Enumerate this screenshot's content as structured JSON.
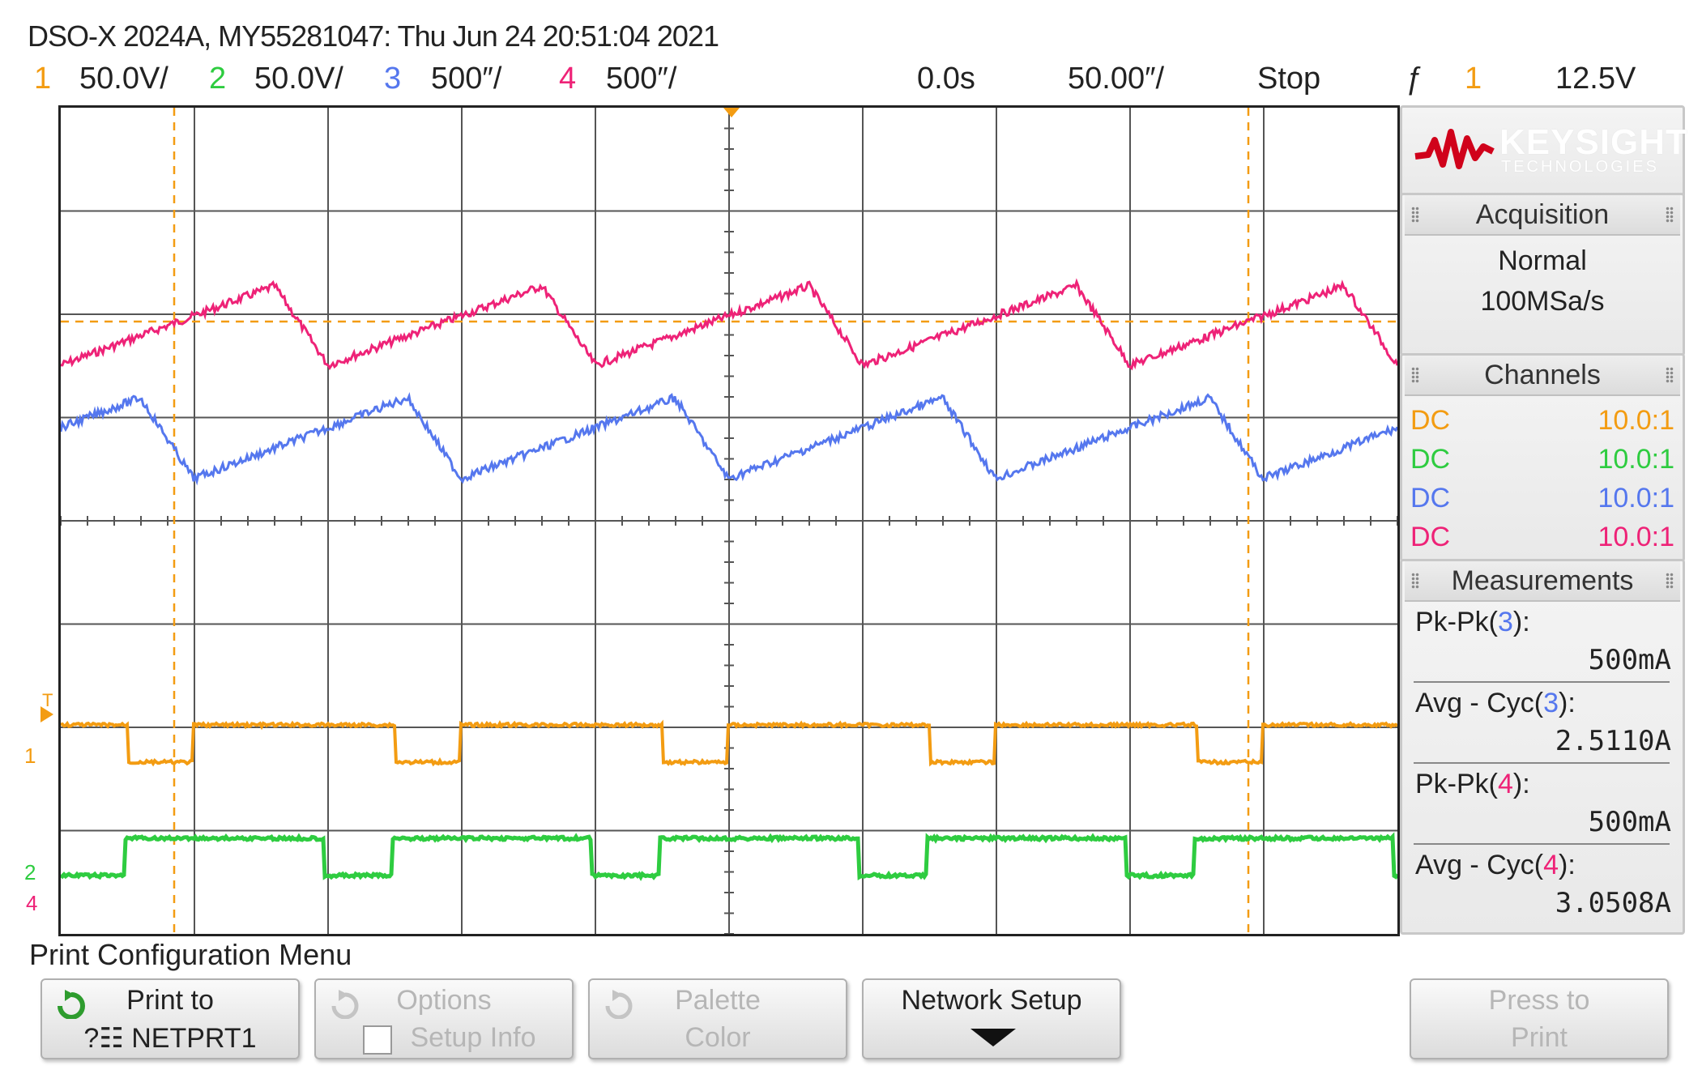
{
  "header": {
    "title": "DSO-X 2024A, MY55281047: Thu Jun 24 20:51:04 2021",
    "channels": [
      {
        "num": "1",
        "scale": "50.0V/",
        "color": "#f39c12"
      },
      {
        "num": "2",
        "scale": "50.0V/",
        "color": "#2ecc40"
      },
      {
        "num": "3",
        "scale": "500″/",
        "color": "#5577ee"
      },
      {
        "num": "4",
        "scale": "500″/",
        "color": "#ee2277"
      }
    ],
    "delay": "0.0s",
    "timebase": "50.00″/",
    "run_state": "Stop",
    "trigger_icon": "ƒ",
    "trigger_channel": "1",
    "trigger_level": "12.5V"
  },
  "logo": {
    "name": "KEYSIGHT",
    "sub": "TECHNOLOGIES"
  },
  "acquisition": {
    "title": "Acquisition",
    "mode": "Normal",
    "rate": "100MSa/s"
  },
  "channels_panel": {
    "title": "Channels",
    "rows": [
      {
        "coupling": "DC",
        "probe": "10.0:1",
        "color": "#f39c12"
      },
      {
        "coupling": "DC",
        "probe": "10.0:1",
        "color": "#2ecc40"
      },
      {
        "coupling": "DC",
        "probe": "10.0:1",
        "color": "#5577ee"
      },
      {
        "coupling": "DC",
        "probe": "10.0:1",
        "color": "#ee2277"
      }
    ]
  },
  "measurements": {
    "title": "Measurements",
    "items": [
      {
        "prefix": "Pk-Pk(",
        "ch": "3",
        "suffix": "):",
        "value": "500mA",
        "color": "#5577ee"
      },
      {
        "prefix": "Avg - Cyc(",
        "ch": "3",
        "suffix": "):",
        "value": "2.5110A",
        "color": "#5577ee"
      },
      {
        "prefix": "Pk-Pk(",
        "ch": "4",
        "suffix": "):",
        "value": "500mA",
        "color": "#ee2277"
      },
      {
        "prefix": "Avg - Cyc(",
        "ch": "4",
        "suffix": "):",
        "value": "3.0508A",
        "color": "#ee2277"
      }
    ]
  },
  "screen_markers": {
    "trigger_T": "T",
    "ch1": "1",
    "ch2": "2",
    "ch4": "4"
  },
  "menu": {
    "title": "Print Configuration Menu",
    "softkeys": [
      {
        "line1": "Print to",
        "line2": "?☷ NETPRT1",
        "enabled": true
      },
      {
        "line1": "Options",
        "line2": "Setup Info",
        "enabled": false
      },
      {
        "line1": "Palette",
        "line2": "Color",
        "enabled": false
      },
      {
        "line1": "Network Setup",
        "line2": "",
        "enabled": true
      },
      {
        "line1": "Press to",
        "line2": "Print",
        "enabled": false
      }
    ]
  }
}
